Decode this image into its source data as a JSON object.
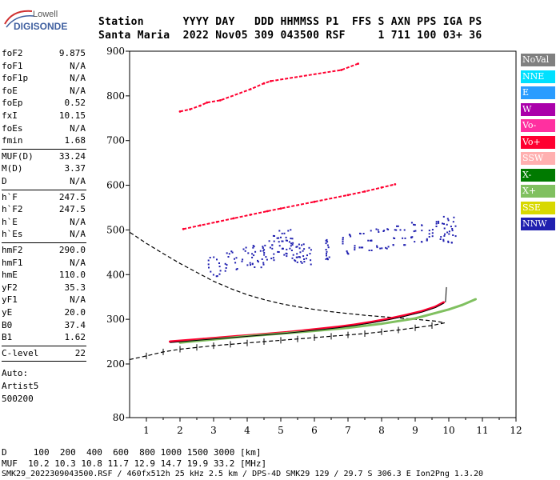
{
  "logo": {
    "top": "Lowell",
    "bottom": "DIGISONDE"
  },
  "header": {
    "line1": "Station      YYYY DAY   DDD HHMMSS P1  FFS S AXN PPS IGA PS",
    "line2": "Santa Maria  2022 Nov05 309 043500 RSF     1 711 100 03+ 36"
  },
  "params": {
    "group1": [
      {
        "k": "foF2",
        "v": "9.875"
      },
      {
        "k": "foF1",
        "v": "N/A"
      },
      {
        "k": "foF1p",
        "v": "N/A"
      },
      {
        "k": "foE",
        "v": "N/A"
      },
      {
        "k": "foEp",
        "v": "0.52"
      },
      {
        "k": "fxI",
        "v": "10.15"
      },
      {
        "k": "foEs",
        "v": "N/A"
      },
      {
        "k": "fmin",
        "v": "1.68"
      }
    ],
    "group2": [
      {
        "k": "MUF(D)",
        "v": "33.24"
      },
      {
        "k": "M(D)",
        "v": "3.37"
      },
      {
        "k": "D",
        "v": "N/A"
      }
    ],
    "group3": [
      {
        "k": "h`F",
        "v": "247.5"
      },
      {
        "k": "h`F2",
        "v": "247.5"
      },
      {
        "k": "h`E",
        "v": "N/A"
      },
      {
        "k": "h`Es",
        "v": "N/A"
      }
    ],
    "group4": [
      {
        "k": "hmF2",
        "v": "290.0"
      },
      {
        "k": "hmF1",
        "v": "N/A"
      },
      {
        "k": "hmE",
        "v": "110.0"
      },
      {
        "k": "yF2",
        "v": "35.3"
      },
      {
        "k": "yF1",
        "v": "N/A"
      },
      {
        "k": "yE",
        "v": "20.0"
      },
      {
        "k": "B0",
        "v": "37.4"
      },
      {
        "k": "B1",
        "v": "1.62"
      }
    ],
    "group5": [
      {
        "k": "C-level",
        "v": "22"
      }
    ],
    "auto": [
      "Auto:",
      "Artist5",
      "500200"
    ]
  },
  "legend": [
    {
      "label": "NoVal",
      "bg": "#808080",
      "fg": "#ffffff"
    },
    {
      "label": "NNE",
      "bg": "#00e0ff",
      "fg": "#ffffff"
    },
    {
      "label": "E",
      "bg": "#2a9cff",
      "fg": "#ffffff"
    },
    {
      "label": "W",
      "bg": "#aa00aa",
      "fg": "#ffffff"
    },
    {
      "label": "Vo-",
      "bg": "#ff30a0",
      "fg": "#ffffff"
    },
    {
      "label": "Vo+",
      "bg": "#ff0030",
      "fg": "#ffffff"
    },
    {
      "label": "SSW",
      "bg": "#ffb0b0",
      "fg": "#ffffff"
    },
    {
      "label": "X-",
      "bg": "#007a00",
      "fg": "#ffffff"
    },
    {
      "label": "X+",
      "bg": "#80c060",
      "fg": "#ffffff"
    },
    {
      "label": "SSE",
      "bg": "#d8d800",
      "fg": "#ffffff"
    },
    {
      "label": "NNW",
      "bg": "#2020b0",
      "fg": "#ffffff"
    }
  ],
  "footer": {
    "d_line": "D     100  200  400  600  800 1000 1500 3000 [km]",
    "muf_line": "MUF  10.2 10.3 10.8 11.7 12.9 14.7 19.9 33.2 [MHz]",
    "info_line": "SMK29_2022309043500.RSF / 460fx512h 25 kHz 2.5 km / DPS-4D SMK29 129 / 29.7 S 306.3 E Ion2Png 1.3.20"
  },
  "chart_data": {
    "type": "scatter",
    "title": "",
    "xlabel": "",
    "ylabel": "",
    "xlim": [
      0.5,
      12.0
    ],
    "ylim": [
      80,
      900
    ],
    "x_ticks": [
      1,
      2,
      3,
      4,
      5,
      6,
      7,
      8,
      9,
      10,
      11,
      12
    ],
    "y_ticks": [
      80,
      200,
      300,
      400,
      500,
      600,
      700,
      800,
      900
    ],
    "grid": false,
    "series": [
      {
        "name": "Vo+",
        "color": "#ff0030",
        "points": [
          [
            1.7,
            250
          ],
          [
            2.2,
            253
          ],
          [
            2.7,
            256
          ],
          [
            3.2,
            259
          ],
          [
            3.7,
            262
          ],
          [
            4.2,
            265
          ],
          [
            4.7,
            268
          ],
          [
            5.2,
            271
          ],
          [
            5.7,
            275
          ],
          [
            6.2,
            279
          ],
          [
            6.7,
            283
          ],
          [
            7.2,
            288
          ],
          [
            7.7,
            294
          ],
          [
            8.2,
            301
          ],
          [
            8.7,
            309
          ],
          [
            9.2,
            318
          ],
          [
            9.6,
            328
          ],
          [
            9.85,
            338
          ]
        ]
      },
      {
        "name": "X+",
        "color": "#80c060",
        "points": [
          [
            2.0,
            248
          ],
          [
            3.0,
            255
          ],
          [
            4.0,
            262
          ],
          [
            5.0,
            268
          ],
          [
            6.0,
            274
          ],
          [
            7.0,
            281
          ],
          [
            8.0,
            290
          ],
          [
            9.0,
            302
          ],
          [
            9.5,
            312
          ],
          [
            10.0,
            322
          ],
          [
            10.4,
            332
          ],
          [
            10.8,
            345
          ]
        ]
      },
      {
        "name": "Vo+ 2nd hop",
        "color": "#ff0030",
        "points": [
          [
            2.1,
            502
          ],
          [
            2.6,
            510
          ],
          [
            3.1,
            518
          ],
          [
            3.6,
            526
          ],
          [
            4.1,
            534
          ],
          [
            4.6,
            542
          ],
          [
            5.0,
            548
          ],
          [
            6.0,
            563
          ],
          [
            7.0,
            578
          ],
          [
            7.5,
            586
          ],
          [
            8.0,
            595
          ],
          [
            8.4,
            602
          ]
        ]
      },
      {
        "name": "NNW",
        "color": "#2020b0",
        "points": [
          [
            3.0,
            420
          ],
          [
            3.5,
            432
          ],
          [
            4.0,
            445
          ],
          [
            4.3,
            440
          ],
          [
            4.6,
            455
          ],
          [
            4.9,
            468
          ],
          [
            5.1,
            480
          ],
          [
            5.3,
            462
          ],
          [
            5.5,
            448
          ],
          [
            5.7,
            440
          ],
          [
            6.5,
            458
          ],
          [
            7.0,
            470
          ],
          [
            7.5,
            478
          ],
          [
            8.0,
            482
          ],
          [
            8.5,
            488
          ],
          [
            9.0,
            496
          ],
          [
            9.5,
            500
          ],
          [
            9.9,
            495
          ],
          [
            10.0,
            510
          ]
        ]
      },
      {
        "name": "Vo+ 3rd hop",
        "color": "#ff0030",
        "points": [
          [
            2.0,
            765
          ],
          [
            2.3,
            770
          ],
          [
            2.6,
            778
          ],
          [
            2.8,
            785
          ],
          [
            3.2,
            790
          ],
          [
            4.1,
            815
          ],
          [
            4.5,
            828
          ],
          [
            4.7,
            833
          ],
          [
            6.8,
            858
          ],
          [
            7.3,
            872
          ]
        ]
      }
    ],
    "profile": {
      "name": "electron density profile",
      "x": [
        0.5,
        1.0,
        1.5,
        2.0,
        2.5,
        3.0,
        3.5,
        4.0,
        4.5,
        5.0,
        5.5,
        6.0,
        6.5,
        7.0,
        7.5,
        8.0,
        8.5,
        9.0,
        9.5,
        9.875,
        9.6,
        9.0,
        8.5,
        8.0,
        7.5,
        7.0,
        6.5,
        6.0,
        5.5,
        5.0,
        4.5,
        4.0,
        3.5,
        3.0,
        2.5,
        2.0,
        1.5,
        1.0,
        0.5
      ],
      "y": [
        210,
        218,
        227,
        233,
        237,
        241,
        244,
        247,
        250,
        253,
        256,
        259,
        262,
        265,
        268,
        272,
        276,
        281,
        286,
        292,
        296,
        300,
        303,
        306,
        309,
        313,
        317,
        322,
        328,
        335,
        344,
        355,
        369,
        385,
        405,
        425,
        447,
        470,
        495
      ]
    }
  }
}
